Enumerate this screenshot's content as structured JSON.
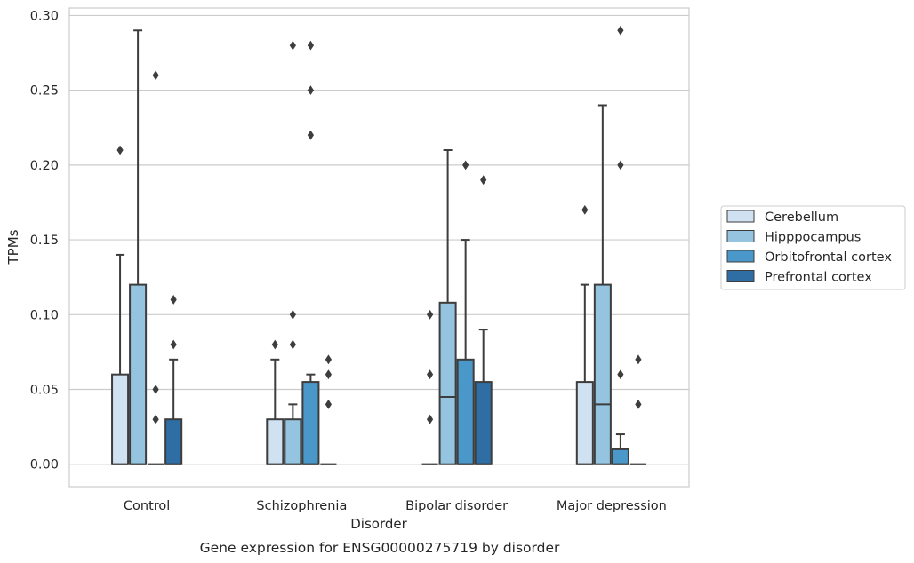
{
  "chart_data": {
    "type": "box",
    "caption": "Gene expression for ENSG00000275719 by disorder",
    "xlabel": "Disorder",
    "ylabel": "TPMs",
    "ylim": [
      -0.015,
      0.305
    ],
    "y_ticks": [
      "0.00",
      "0.05",
      "0.10",
      "0.15",
      "0.20",
      "0.25",
      "0.30"
    ],
    "grid": true,
    "legend_position": "right",
    "categories": [
      "Control",
      "Schizophrenia",
      "Bipolar disorder",
      "Major depression"
    ],
    "series": [
      {
        "name": "Cerebellum",
        "color": "#d0e1f2",
        "boxes": [
          {
            "whislo": 0.0,
            "q1": 0.0,
            "med": 0.0,
            "q3": 0.06,
            "whishi": 0.14,
            "fliers": [
              0.21
            ]
          },
          {
            "whislo": 0.0,
            "q1": 0.0,
            "med": 0.0,
            "q3": 0.03,
            "whishi": 0.07,
            "fliers": [
              0.08
            ]
          },
          {
            "whislo": 0.0,
            "q1": 0.0,
            "med": 0.0,
            "q3": 0.0,
            "whishi": 0.0,
            "fliers": [
              0.03,
              0.06,
              0.1
            ]
          },
          {
            "whislo": 0.0,
            "q1": 0.0,
            "med": 0.0,
            "q3": 0.055,
            "whishi": 0.12,
            "fliers": [
              0.17
            ]
          }
        ]
      },
      {
        "name": "Hipppocampus",
        "color": "#94c4df",
        "boxes": [
          {
            "whislo": 0.0,
            "q1": 0.0,
            "med": 0.0,
            "q3": 0.12,
            "whishi": 0.29,
            "fliers": []
          },
          {
            "whislo": 0.0,
            "q1": 0.0,
            "med": 0.0,
            "q3": 0.03,
            "whishi": 0.04,
            "fliers": [
              0.08,
              0.1,
              0.28
            ]
          },
          {
            "whislo": 0.0,
            "q1": 0.0,
            "med": 0.045,
            "q3": 0.108,
            "whishi": 0.21,
            "fliers": []
          },
          {
            "whislo": 0.0,
            "q1": 0.0,
            "med": 0.04,
            "q3": 0.12,
            "whishi": 0.24,
            "fliers": []
          }
        ]
      },
      {
        "name": "Orbitofrontal cortex",
        "color": "#4a98c9",
        "boxes": [
          {
            "whislo": 0.0,
            "q1": 0.0,
            "med": 0.0,
            "q3": 0.0,
            "whishi": 0.0,
            "fliers": [
              0.03,
              0.05,
              0.26
            ]
          },
          {
            "whislo": 0.0,
            "q1": 0.0,
            "med": 0.0,
            "q3": 0.055,
            "whishi": 0.06,
            "fliers": [
              0.22,
              0.25,
              0.28
            ]
          },
          {
            "whislo": 0.0,
            "q1": 0.0,
            "med": 0.0,
            "q3": 0.07,
            "whishi": 0.15,
            "fliers": [
              0.2
            ]
          },
          {
            "whislo": 0.0,
            "q1": 0.0,
            "med": 0.0,
            "q3": 0.01,
            "whishi": 0.02,
            "fliers": [
              0.06,
              0.2,
              0.29
            ]
          }
        ]
      },
      {
        "name": "Prefrontal cortex",
        "color": "#2e6ea5",
        "boxes": [
          {
            "whislo": 0.0,
            "q1": 0.0,
            "med": 0.0,
            "q3": 0.03,
            "whishi": 0.07,
            "fliers": [
              0.08,
              0.11
            ]
          },
          {
            "whislo": 0.0,
            "q1": 0.0,
            "med": 0.0,
            "q3": 0.0,
            "whishi": 0.0,
            "fliers": [
              0.04,
              0.06,
              0.07
            ]
          },
          {
            "whislo": 0.0,
            "q1": 0.0,
            "med": 0.0,
            "q3": 0.055,
            "whishi": 0.09,
            "fliers": [
              0.19
            ]
          },
          {
            "whislo": 0.0,
            "q1": 0.0,
            "med": 0.0,
            "q3": 0.0,
            "whishi": 0.0,
            "fliers": [
              0.04,
              0.07
            ]
          }
        ]
      }
    ]
  },
  "colors": {
    "line": "#3d3d3d",
    "grid": "#cccccc",
    "axes_border": "#cccccc"
  }
}
